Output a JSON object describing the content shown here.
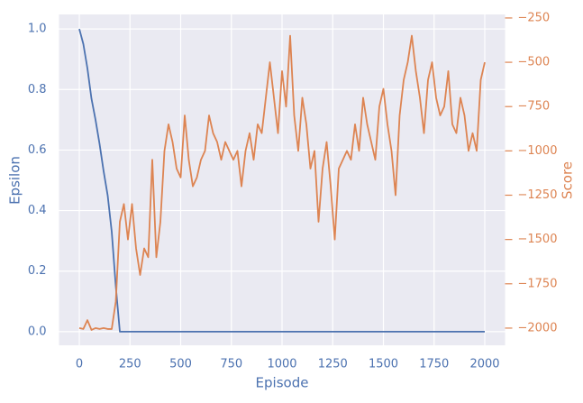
{
  "chart_data": {
    "type": "line",
    "x_label": "Episode",
    "y_label": "Epsilon",
    "y2_label": "Score",
    "x": [
      0,
      20,
      40,
      60,
      80,
      100,
      120,
      140,
      160,
      180,
      200,
      220,
      240,
      260,
      280,
      300,
      320,
      340,
      360,
      380,
      400,
      420,
      440,
      460,
      480,
      500,
      520,
      540,
      560,
      580,
      600,
      620,
      640,
      660,
      680,
      700,
      720,
      740,
      760,
      780,
      800,
      820,
      840,
      860,
      880,
      900,
      920,
      940,
      960,
      980,
      1000,
      1020,
      1040,
      1060,
      1080,
      1100,
      1120,
      1140,
      1160,
      1180,
      1200,
      1220,
      1240,
      1260,
      1280,
      1300,
      1320,
      1340,
      1360,
      1380,
      1400,
      1420,
      1440,
      1460,
      1480,
      1500,
      1520,
      1540,
      1560,
      1580,
      1600,
      1620,
      1640,
      1660,
      1680,
      1700,
      1720,
      1740,
      1760,
      1780,
      1800,
      1820,
      1840,
      1860,
      1880,
      1900,
      1920,
      1940,
      1960,
      1980,
      2000
    ],
    "series": [
      {
        "name": "Epsilon",
        "color": "#4c72b0",
        "axis": "y",
        "values": [
          1.0,
          0.95,
          0.87,
          0.77,
          0.7,
          0.62,
          0.53,
          0.45,
          0.33,
          0.15,
          0,
          0,
          0,
          0,
          0,
          0,
          0,
          0,
          0,
          0,
          0,
          0,
          0,
          0,
          0,
          0,
          0,
          0,
          0,
          0,
          0,
          0,
          0,
          0,
          0,
          0,
          0,
          0,
          0,
          0,
          0,
          0,
          0,
          0,
          0,
          0,
          0,
          0,
          0,
          0,
          0,
          0,
          0,
          0,
          0,
          0,
          0,
          0,
          0,
          0,
          0,
          0,
          0,
          0,
          0,
          0,
          0,
          0,
          0,
          0,
          0,
          0,
          0,
          0,
          0,
          0,
          0,
          0,
          0,
          0,
          0,
          0,
          0,
          0,
          0,
          0,
          0,
          0,
          0,
          0,
          0,
          0,
          0,
          0,
          0,
          0,
          0,
          0,
          0,
          0,
          0
        ]
      },
      {
        "name": "Score",
        "color": "#dd8452",
        "axis": "y2",
        "values": [
          -2000,
          -2005,
          -1955,
          -2010,
          -2000,
          -2005,
          -2000,
          -2005,
          -2005,
          -1850,
          -1400,
          -1300,
          -1500,
          -1300,
          -1550,
          -1700,
          -1550,
          -1600,
          -1050,
          -1600,
          -1400,
          -1000,
          -850,
          -950,
          -1100,
          -1150,
          -800,
          -1050,
          -1200,
          -1150,
          -1050,
          -1000,
          -800,
          -900,
          -950,
          -1050,
          -950,
          -1000,
          -1050,
          -1000,
          -1200,
          -1000,
          -900,
          -1050,
          -850,
          -900,
          -700,
          -500,
          -700,
          -900,
          -550,
          -750,
          -350,
          -800,
          -1000,
          -700,
          -850,
          -1100,
          -1000,
          -1400,
          -1100,
          -950,
          -1200,
          -1500,
          -1100,
          -1050,
          -1000,
          -1050,
          -850,
          -1000,
          -700,
          -850,
          -950,
          -1050,
          -750,
          -650,
          -850,
          -1000,
          -1250,
          -800,
          -600,
          -500,
          -350,
          -550,
          -700,
          -900,
          -600,
          -500,
          -700,
          -800,
          -750,
          -550,
          -850,
          -900,
          -700,
          -800,
          -1000,
          -900,
          -1000,
          -600,
          -500
        ]
      }
    ],
    "xlim": [
      -100,
      2100
    ],
    "xticks": [
      0,
      250,
      500,
      750,
      1000,
      1250,
      1500,
      1750,
      2000
    ],
    "ylim": [
      -0.045,
      1.048
    ],
    "yticks": [
      {
        "value": 0,
        "label": "0.0"
      },
      0.2,
      0.4,
      0.6,
      0.8,
      {
        "value": 1,
        "label": "1.0"
      }
    ],
    "y2lim": [
      -2097,
      -230
    ],
    "y2ticks": [
      {
        "value": -2000,
        "label": "−2000"
      },
      {
        "value": -1750,
        "label": "−1750"
      },
      {
        "value": -1500,
        "label": "−1500"
      },
      {
        "value": -1250,
        "label": "−1250"
      },
      {
        "value": -1000,
        "label": "−1000"
      },
      {
        "value": -750,
        "label": "−750"
      },
      {
        "value": -500,
        "label": "−500"
      },
      {
        "value": -250,
        "label": "−250"
      }
    ],
    "grid": true,
    "background": "#eaeaf2"
  }
}
